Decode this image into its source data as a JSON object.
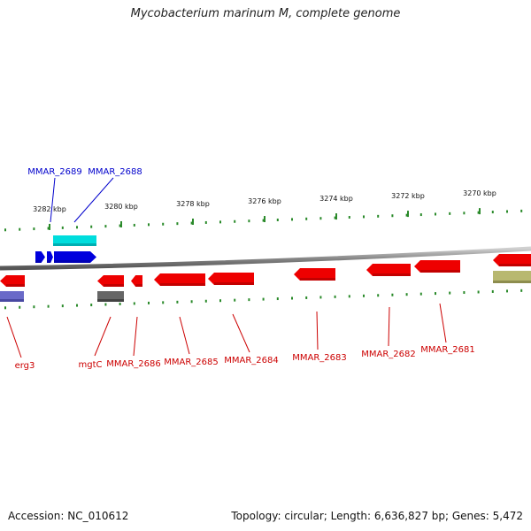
{
  "title": "Mycobacterium marinum M, complete genome",
  "footer": {
    "accession": "Accession: NC_010612",
    "summary": "Topology: circular; Length: 6,636,827 bp; Genes: 5,472"
  },
  "chart_data": {
    "type": "genome-map",
    "axis": {
      "unit": "kbp",
      "direction": "decreasing-left-to-right",
      "ticks": [
        3282,
        3280,
        3278,
        3276,
        3274,
        3272,
        3270
      ],
      "tick_labels": [
        "3282 kbp",
        "3280 kbp",
        "3278 kbp",
        "3276 kbp",
        "3274 kbp",
        "3272 kbp",
        "3270 kbp"
      ]
    },
    "colors": {
      "forward_gene": "#0000dd",
      "forward_feature": "#00dddd",
      "reverse_gene": "#ee0000",
      "backbone": "#888888",
      "tick": "#2a8a2a",
      "forward_label": "#0000cc",
      "reverse_label": "#cc0000",
      "misc_feature_grey": "#666666",
      "misc_feature_purple": "#6a6ac8",
      "misc_feature_olive": "#b8b870"
    },
    "forward_genes": [
      {
        "name": "MMAR_2689",
        "strand": "+"
      },
      {
        "name": "MMAR_2688",
        "strand": "+"
      }
    ],
    "reverse_genes": [
      {
        "name": "erg3",
        "strand": "-"
      },
      {
        "name": "mgtC",
        "strand": "-"
      },
      {
        "name": "MMAR_2686",
        "strand": "-"
      },
      {
        "name": "MMAR_2685",
        "strand": "-"
      },
      {
        "name": "MMAR_2684",
        "strand": "-"
      },
      {
        "name": "MMAR_2683",
        "strand": "-"
      },
      {
        "name": "MMAR_2682",
        "strand": "-"
      },
      {
        "name": "MMAR_2681",
        "strand": "-"
      }
    ]
  }
}
